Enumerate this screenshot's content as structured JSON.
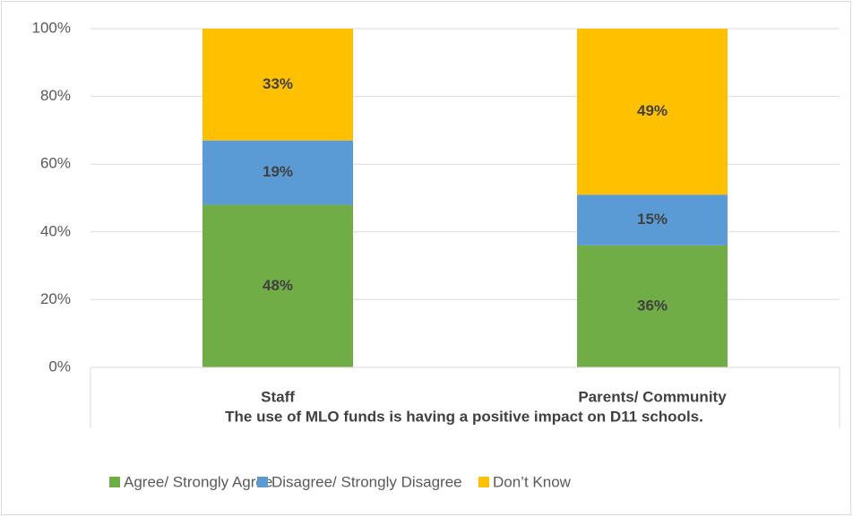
{
  "chart_data": {
    "type": "stacked_bar",
    "xlabel": "The use of MLO funds is having a positive impact on D11 schools.",
    "categories": [
      "Staff",
      "Parents/ Community"
    ],
    "series": [
      {
        "name": "Agree/ Strongly Agree",
        "color": "#70ad47",
        "values": [
          48,
          36
        ],
        "value_labels": [
          "48%",
          "36%"
        ]
      },
      {
        "name": "Disagree/ Strongly Disagree",
        "color": "#5b9bd5",
        "values": [
          19,
          15
        ],
        "value_labels": [
          "19%",
          "15%"
        ]
      },
      {
        "name": "Don’t Know",
        "color": "#ffc000",
        "values": [
          33,
          49
        ],
        "value_labels": [
          "33%",
          "49%"
        ]
      }
    ],
    "ylim": [
      0,
      100
    ],
    "yticks": [
      {
        "value": 0,
        "label": "0%"
      },
      {
        "value": 20,
        "label": "20%"
      },
      {
        "value": 40,
        "label": "40%"
      },
      {
        "value": 60,
        "label": "60%"
      },
      {
        "value": 80,
        "label": "80%"
      },
      {
        "value": 100,
        "label": "100%"
      }
    ],
    "grid": true,
    "legend": "bottom"
  }
}
